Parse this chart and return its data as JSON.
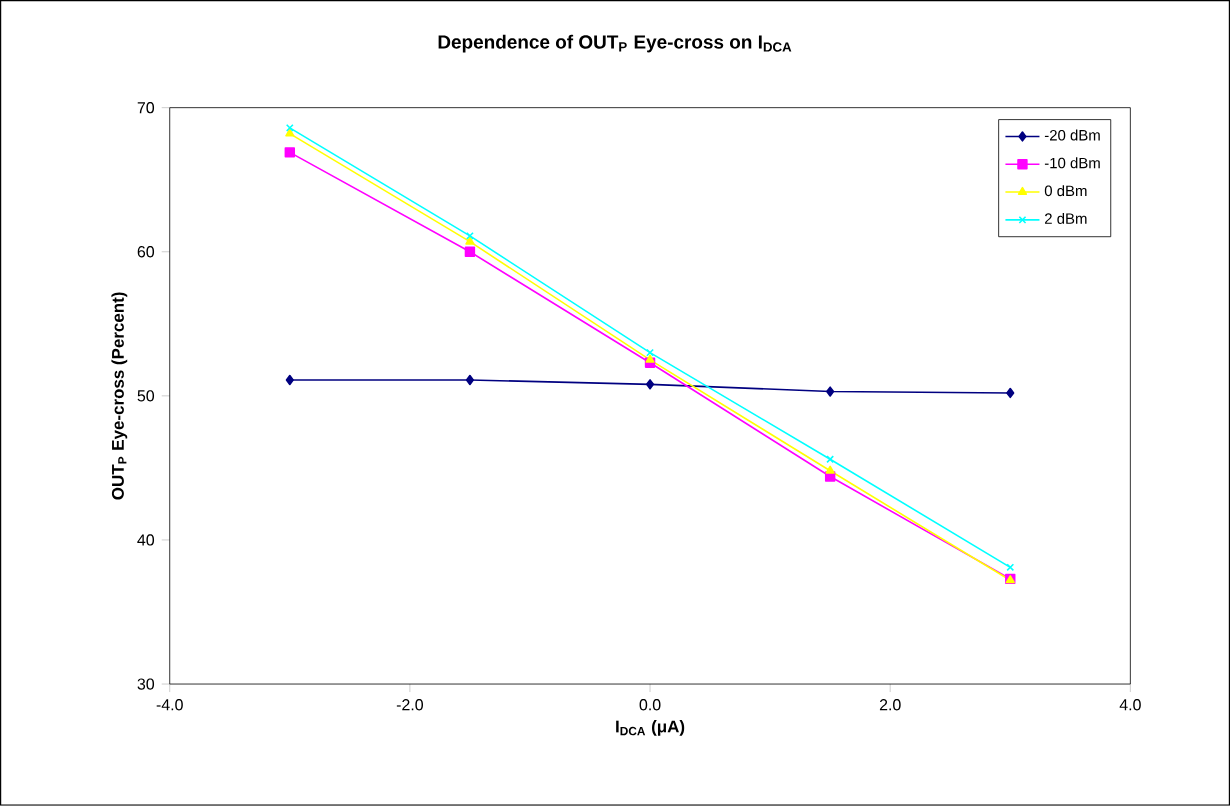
{
  "chart_data": {
    "type": "line",
    "title": "Dependence of OUT$_{P}$ Eye-cross on I$_{DCA}$",
    "xlabel": "I$_{DCA}$ (μA)",
    "ylabel": "OUT$_{P}$ Eye-cross (Percent)",
    "x": [
      -3,
      -1.5,
      0,
      1.5,
      3
    ],
    "series": [
      {
        "name": "-20 dBm",
        "color": "#000080",
        "marker": "diamond",
        "values": [
          51.1,
          51.1,
          50.8,
          50.3,
          50.2
        ]
      },
      {
        "name": "-10 dBm",
        "color": "#ff00ff",
        "marker": "square",
        "values": [
          66.9,
          60.0,
          52.3,
          44.4,
          37.3
        ]
      },
      {
        "name": "0 dBm",
        "color": "#ffff00",
        "marker": "triangle",
        "values": [
          68.2,
          60.7,
          52.5,
          44.8,
          37.2
        ]
      },
      {
        "name": "2 dBm",
        "color": "#00ffff",
        "marker": "cross",
        "values": [
          68.6,
          61.1,
          53.0,
          45.6,
          38.1
        ]
      }
    ],
    "xlim": [
      -4,
      4
    ],
    "ylim": [
      30,
      70
    ],
    "xticks": [
      {
        "value": -4,
        "label": "-4.0"
      },
      {
        "value": -2,
        "label": "-2.0"
      },
      {
        "value": 0,
        "label": "0.0"
      },
      {
        "value": 2,
        "label": "2.0"
      },
      {
        "value": 4,
        "label": "4.0"
      }
    ],
    "yticks": [
      30,
      40,
      50,
      60,
      70
    ],
    "grid": false,
    "legend": "top right",
    "line_style": "solid"
  }
}
